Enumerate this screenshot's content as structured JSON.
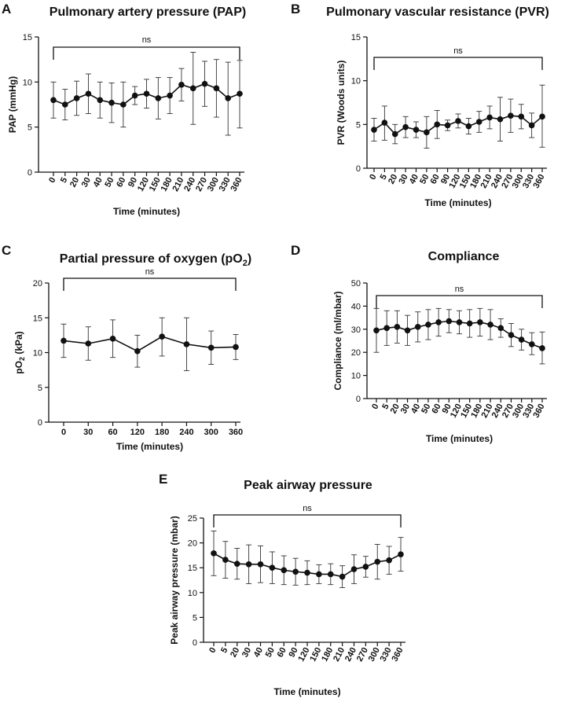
{
  "chart_data": [
    {
      "type": "line",
      "panel": "A",
      "title": "Pulmonary artery pressure (PAP)",
      "xlabel": "Time (minutes)",
      "ylabel": "PAP (mmHg)",
      "ylim": [
        0,
        15
      ],
      "yticks": [
        0,
        5,
        10,
        15
      ],
      "categories": [
        "0",
        "5",
        "20",
        "30",
        "40",
        "50",
        "60",
        "90",
        "120",
        "150",
        "180",
        "210",
        "240",
        "270",
        "300",
        "330",
        "360"
      ],
      "rotate_x": true,
      "values": [
        8.0,
        7.5,
        8.2,
        8.7,
        8.0,
        7.7,
        7.5,
        8.5,
        8.7,
        8.2,
        8.5,
        9.7,
        9.3,
        9.8,
        9.3,
        8.2,
        8.7
      ],
      "err_low": [
        6.0,
        5.8,
        6.3,
        6.5,
        6.0,
        5.5,
        5.0,
        7.5,
        7.1,
        5.9,
        6.5,
        7.9,
        5.3,
        7.3,
        6.1,
        4.1,
        4.9
      ],
      "err_high": [
        10.0,
        9.2,
        10.1,
        10.9,
        10.0,
        9.9,
        10.0,
        9.5,
        10.3,
        10.5,
        10.5,
        11.5,
        13.3,
        12.3,
        12.5,
        12.2,
        12.4
      ],
      "significance": "ns"
    },
    {
      "type": "line",
      "panel": "B",
      "title": "Pulmonary vascular resistance (PVR)",
      "xlabel": "Time (minutes)",
      "ylabel": "PVR (Woods units)",
      "ylim": [
        0,
        15
      ],
      "yticks": [
        0,
        5,
        10,
        15
      ],
      "categories": [
        "0",
        "5",
        "20",
        "30",
        "40",
        "50",
        "60",
        "90",
        "120",
        "150",
        "180",
        "210",
        "240",
        "270",
        "300",
        "330",
        "360"
      ],
      "rotate_x": true,
      "values": [
        4.4,
        5.2,
        3.9,
        4.7,
        4.4,
        4.1,
        5.0,
        4.9,
        5.4,
        4.8,
        5.3,
        5.8,
        5.6,
        6.0,
        5.9,
        4.9,
        5.9
      ],
      "err_low": [
        3.1,
        3.2,
        2.8,
        3.5,
        3.5,
        2.3,
        3.4,
        4.3,
        4.6,
        3.9,
        4.1,
        4.5,
        3.1,
        4.1,
        4.5,
        3.5,
        2.4
      ],
      "err_high": [
        5.7,
        7.1,
        5.0,
        5.9,
        5.3,
        5.9,
        6.6,
        5.5,
        6.2,
        5.7,
        6.5,
        7.1,
        8.1,
        7.9,
        7.3,
        6.3,
        9.5
      ],
      "significance": "ns"
    },
    {
      "type": "line",
      "panel": "C",
      "title": "Partial pressure of oxygen (pO",
      "title_sub": "2",
      "title_end": ")",
      "xlabel": "Time (minutes)",
      "ylabel": "pO",
      "ylabel_sub": "2",
      "ylabel_end": " (kPa)",
      "ylim": [
        0,
        20
      ],
      "yticks": [
        0,
        5,
        10,
        15,
        20
      ],
      "categories": [
        "0",
        "30",
        "60",
        "120",
        "180",
        "240",
        "300",
        "360"
      ],
      "rotate_x": false,
      "values": [
        11.7,
        11.3,
        12.0,
        10.2,
        12.3,
        11.2,
        10.7,
        10.8
      ],
      "err_low": [
        9.3,
        8.9,
        9.3,
        7.9,
        9.5,
        7.4,
        8.3,
        9.0
      ],
      "err_high": [
        14.1,
        13.7,
        14.7,
        12.5,
        15.0,
        15.0,
        13.1,
        12.6
      ],
      "significance": "ns"
    },
    {
      "type": "line",
      "panel": "D",
      "title": "Compliance",
      "xlabel": "Time (minutes)",
      "ylabel": "Compliance (ml/mbar)",
      "ylim": [
        0,
        50
      ],
      "yticks": [
        0,
        10,
        20,
        30,
        40,
        50
      ],
      "categories": [
        "0",
        "5",
        "20",
        "30",
        "40",
        "50",
        "60",
        "90",
        "120",
        "150",
        "180",
        "210",
        "240",
        "270",
        "300",
        "330",
        "360"
      ],
      "rotate_x": true,
      "values": [
        29.5,
        30.5,
        31.0,
        29.5,
        31.0,
        32.0,
        33.0,
        33.5,
        33.0,
        32.5,
        33.0,
        32.0,
        30.5,
        27.5,
        25.5,
        23.5,
        21.8
      ],
      "err_low": [
        20.0,
        23.0,
        24.0,
        23.0,
        24.5,
        25.5,
        27.0,
        28.5,
        28.0,
        26.5,
        27.0,
        25.5,
        26.5,
        22.5,
        21.0,
        19.0,
        15.0
      ],
      "err_high": [
        39.0,
        38.0,
        38.0,
        36.0,
        37.5,
        38.5,
        39.0,
        38.5,
        38.0,
        38.5,
        39.0,
        38.5,
        34.5,
        32.5,
        30.0,
        28.5,
        28.8
      ],
      "significance": "ns"
    },
    {
      "type": "line",
      "panel": "E",
      "title": "Peak airway pressure",
      "xlabel": "Time (minutes)",
      "ylabel": "Peak airway pressure (mbar)",
      "ylim": [
        0,
        25
      ],
      "yticks": [
        0,
        5,
        10,
        15,
        20,
        25
      ],
      "categories": [
        "0",
        "5",
        "20",
        "30",
        "40",
        "50",
        "60",
        "90",
        "120",
        "150",
        "180",
        "210",
        "240",
        "270",
        "300",
        "330",
        "360"
      ],
      "rotate_x": true,
      "values": [
        17.9,
        16.6,
        15.8,
        15.7,
        15.7,
        15.0,
        14.5,
        14.2,
        14.0,
        13.7,
        13.7,
        13.2,
        14.7,
        15.2,
        16.2,
        16.5,
        17.7
      ],
      "err_low": [
        13.4,
        12.9,
        12.7,
        11.8,
        12.0,
        11.8,
        11.6,
        11.5,
        11.6,
        11.8,
        11.6,
        11.0,
        11.8,
        13.1,
        12.7,
        13.7,
        14.3
      ],
      "err_high": [
        22.4,
        20.3,
        18.9,
        19.6,
        19.4,
        18.2,
        17.4,
        16.9,
        16.4,
        15.6,
        15.8,
        15.4,
        17.6,
        17.3,
        19.7,
        19.3,
        21.1
      ],
      "significance": "ns"
    }
  ]
}
